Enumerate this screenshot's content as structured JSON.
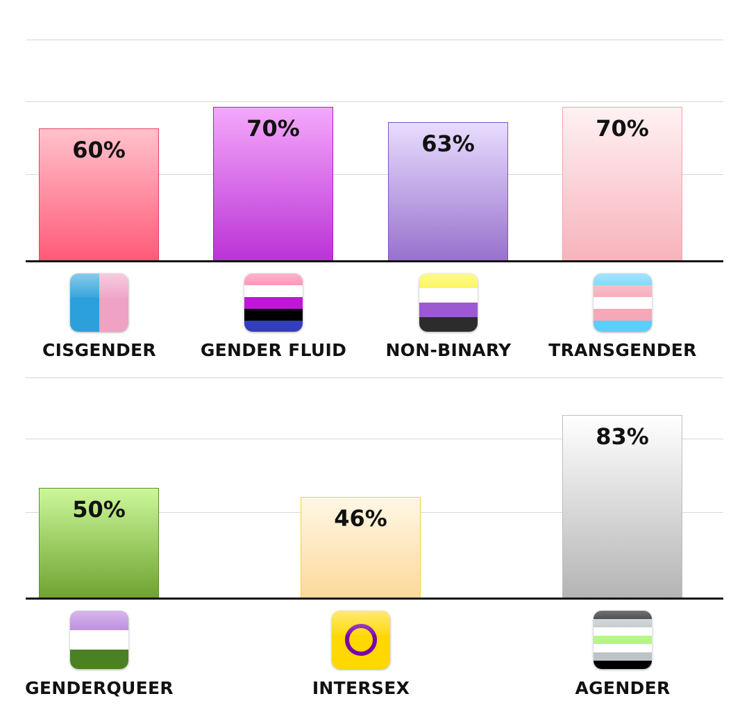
{
  "chart_data": [
    {
      "type": "bar",
      "categories": [
        "CISGENDER",
        "GENDER FLUID",
        "NON-BINARY",
        "TRANSGENDER"
      ],
      "values": [
        60,
        70,
        63,
        70
      ],
      "value_labels": [
        "60%",
        "70%",
        "63%",
        "70%"
      ],
      "ylim": [
        0,
        100
      ],
      "grid": true,
      "colors": [
        "#ff5a78",
        "#bb33d6",
        "#9872cd",
        "#f7b3bb"
      ]
    },
    {
      "type": "bar",
      "categories": [
        "GENDERQUEER",
        "INTERSEX",
        "AGENDER"
      ],
      "values": [
        50,
        46,
        83
      ],
      "value_labels": [
        "50%",
        "46%",
        "83%"
      ],
      "ylim": [
        0,
        100
      ],
      "grid": true,
      "colors": [
        "#6fa331",
        "#fdd99a",
        "#b4b4b4"
      ]
    }
  ],
  "icons": [
    "cisgender-flag-icon",
    "gender-fluid-flag-icon",
    "non-binary-flag-icon",
    "transgender-flag-icon",
    "genderqueer-flag-icon",
    "intersex-flag-icon",
    "agender-flag-icon"
  ]
}
